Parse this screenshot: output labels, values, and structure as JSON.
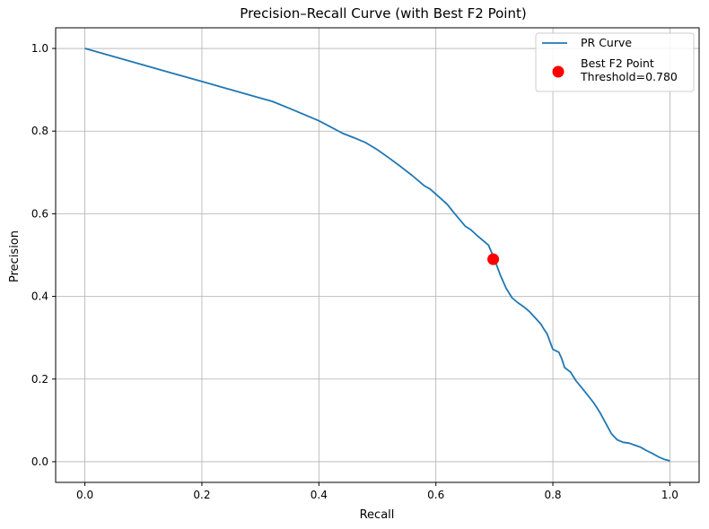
{
  "chart_data": {
    "type": "line",
    "title": "Precision–Recall Curve (with Best F2 Point)",
    "xlabel": "Recall",
    "ylabel": "Precision",
    "xlim": [
      -0.05,
      1.05
    ],
    "ylim": [
      -0.05,
      1.05
    ],
    "xticks": [
      0.0,
      0.2,
      0.4,
      0.6,
      0.8,
      1.0
    ],
    "yticks": [
      0.0,
      0.2,
      0.4,
      0.6,
      0.8,
      1.0
    ],
    "xtick_labels": [
      "0.0",
      "0.2",
      "0.4",
      "0.6",
      "0.8",
      "1.0"
    ],
    "ytick_labels": [
      "0.0",
      "0.2",
      "0.4",
      "0.6",
      "0.8",
      "1.0"
    ],
    "grid": true,
    "legend_position": "top-right",
    "series": [
      {
        "name": "PR Curve",
        "color": "#1f77b4",
        "x": [
          0.0,
          0.05,
          0.1,
          0.15,
          0.2,
          0.25,
          0.3,
          0.32,
          0.35,
          0.38,
          0.4,
          0.42,
          0.44,
          0.46,
          0.48,
          0.5,
          0.52,
          0.54,
          0.56,
          0.58,
          0.59,
          0.61,
          0.62,
          0.63,
          0.64,
          0.65,
          0.66,
          0.67,
          0.68,
          0.69,
          0.7,
          0.71,
          0.72,
          0.73,
          0.74,
          0.75,
          0.76,
          0.77,
          0.78,
          0.785,
          0.79,
          0.8,
          0.81,
          0.815,
          0.82,
          0.83,
          0.84,
          0.85,
          0.86,
          0.87,
          0.88,
          0.89,
          0.9,
          0.91,
          0.92,
          0.93,
          0.94,
          0.95,
          0.96,
          0.97,
          0.98,
          0.99,
          1.0
        ],
        "y": [
          1.0,
          0.98,
          0.96,
          0.94,
          0.92,
          0.9,
          0.88,
          0.872,
          0.855,
          0.837,
          0.825,
          0.81,
          0.795,
          0.784,
          0.772,
          0.755,
          0.735,
          0.714,
          0.692,
          0.668,
          0.66,
          0.635,
          0.622,
          0.604,
          0.587,
          0.57,
          0.561,
          0.548,
          0.536,
          0.524,
          0.49,
          0.452,
          0.42,
          0.397,
          0.385,
          0.375,
          0.363,
          0.348,
          0.332,
          0.32,
          0.31,
          0.272,
          0.265,
          0.25,
          0.228,
          0.217,
          0.195,
          0.178,
          0.16,
          0.142,
          0.12,
          0.094,
          0.068,
          0.053,
          0.047,
          0.045,
          0.04,
          0.035,
          0.027,
          0.02,
          0.012,
          0.006,
          0.002
        ]
      }
    ],
    "highlight_point": {
      "name": "Best F2 Point",
      "label_line2": "Threshold=0.780",
      "x": 0.698,
      "y": 0.49,
      "color": "#ff0000"
    }
  }
}
